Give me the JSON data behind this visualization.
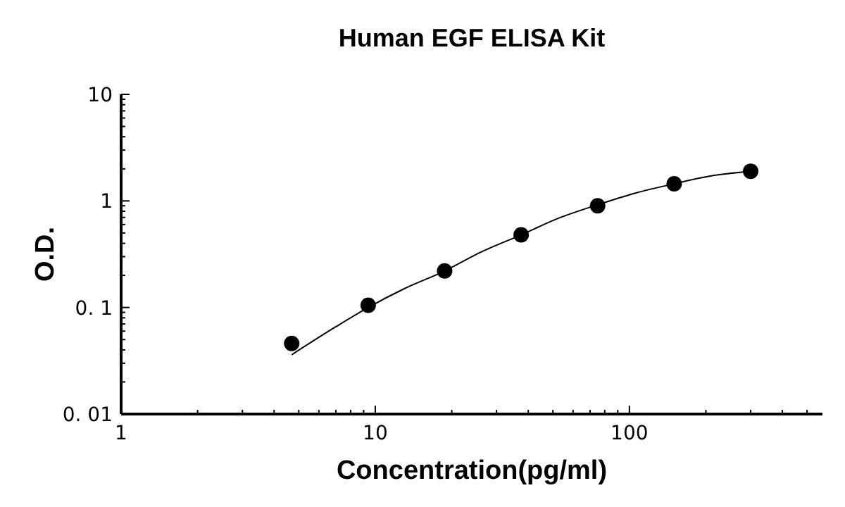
{
  "chart_data": {
    "type": "scatter",
    "title": "Human EGF ELISA Kit",
    "xlabel": "Concentration(pg/ml)",
    "ylabel": "O.D.",
    "log": "xy",
    "grid": false,
    "xlim": [
      1,
      575
    ],
    "ylim": [
      0.01,
      10
    ],
    "xticks": [
      1,
      {
        "value": 2,
        "label": null
      },
      {
        "value": 3,
        "label": null
      },
      {
        "value": 4,
        "label": null
      },
      {
        "value": 5,
        "label": null
      },
      {
        "value": 6,
        "label": null
      },
      {
        "value": 7,
        "label": null
      },
      {
        "value": 8,
        "label": null
      },
      {
        "value": 9,
        "label": null
      },
      10,
      {
        "value": 20,
        "label": null
      },
      {
        "value": 30,
        "label": null
      },
      {
        "value": 40,
        "label": null
      },
      {
        "value": 50,
        "label": null
      },
      {
        "value": 60,
        "label": null
      },
      {
        "value": 70,
        "label": null
      },
      {
        "value": 80,
        "label": null
      },
      {
        "value": 90,
        "label": null
      },
      100,
      {
        "value": 200,
        "label": null
      },
      {
        "value": 300,
        "label": null
      },
      {
        "value": 400,
        "label": null
      },
      {
        "value": 500,
        "label": null
      }
    ],
    "yticks": [
      {
        "value": 0.01,
        "label": "0. 01"
      },
      {
        "value": 0.02,
        "label": null
      },
      {
        "value": 0.03,
        "label": null
      },
      {
        "value": 0.04,
        "label": null
      },
      {
        "value": 0.05,
        "label": null
      },
      {
        "value": 0.06,
        "label": null
      },
      {
        "value": 0.07,
        "label": null
      },
      {
        "value": 0.08,
        "label": null
      },
      {
        "value": 0.09,
        "label": null
      },
      {
        "value": 0.1,
        "label": "0. 1"
      },
      {
        "value": 0.2,
        "label": null
      },
      {
        "value": 0.3,
        "label": null
      },
      {
        "value": 0.4,
        "label": null
      },
      {
        "value": 0.5,
        "label": null
      },
      {
        "value": 0.6,
        "label": null
      },
      {
        "value": 0.7,
        "label": null
      },
      {
        "value": 0.8,
        "label": null
      },
      {
        "value": 0.9,
        "label": null
      },
      1,
      {
        "value": 2,
        "label": null
      },
      {
        "value": 3,
        "label": null
      },
      {
        "value": 4,
        "label": null
      },
      {
        "value": 5,
        "label": null
      },
      {
        "value": 6,
        "label": null
      },
      {
        "value": 7,
        "label": null
      },
      {
        "value": 8,
        "label": null
      },
      {
        "value": 9,
        "label": null
      },
      10
    ],
    "series": [
      {
        "type": "scatter",
        "marker": "circle",
        "color": "#000000",
        "x": [
          4.69,
          9.38,
          18.75,
          37.5,
          75,
          150,
          300
        ],
        "values": [
          0.046,
          0.105,
          0.22,
          0.48,
          0.9,
          1.45,
          1.9
        ]
      },
      {
        "type": "line",
        "marker": "none",
        "line_style": "solid",
        "color": "#000000",
        "x": [
          4.69,
          7,
          9.38,
          13,
          18.75,
          26,
          37.5,
          52,
          75,
          105,
          150,
          210,
          300
        ],
        "values": [
          0.036,
          0.066,
          0.1,
          0.15,
          0.22,
          0.33,
          0.48,
          0.68,
          0.92,
          1.18,
          1.45,
          1.72,
          1.9
        ]
      }
    ]
  }
}
